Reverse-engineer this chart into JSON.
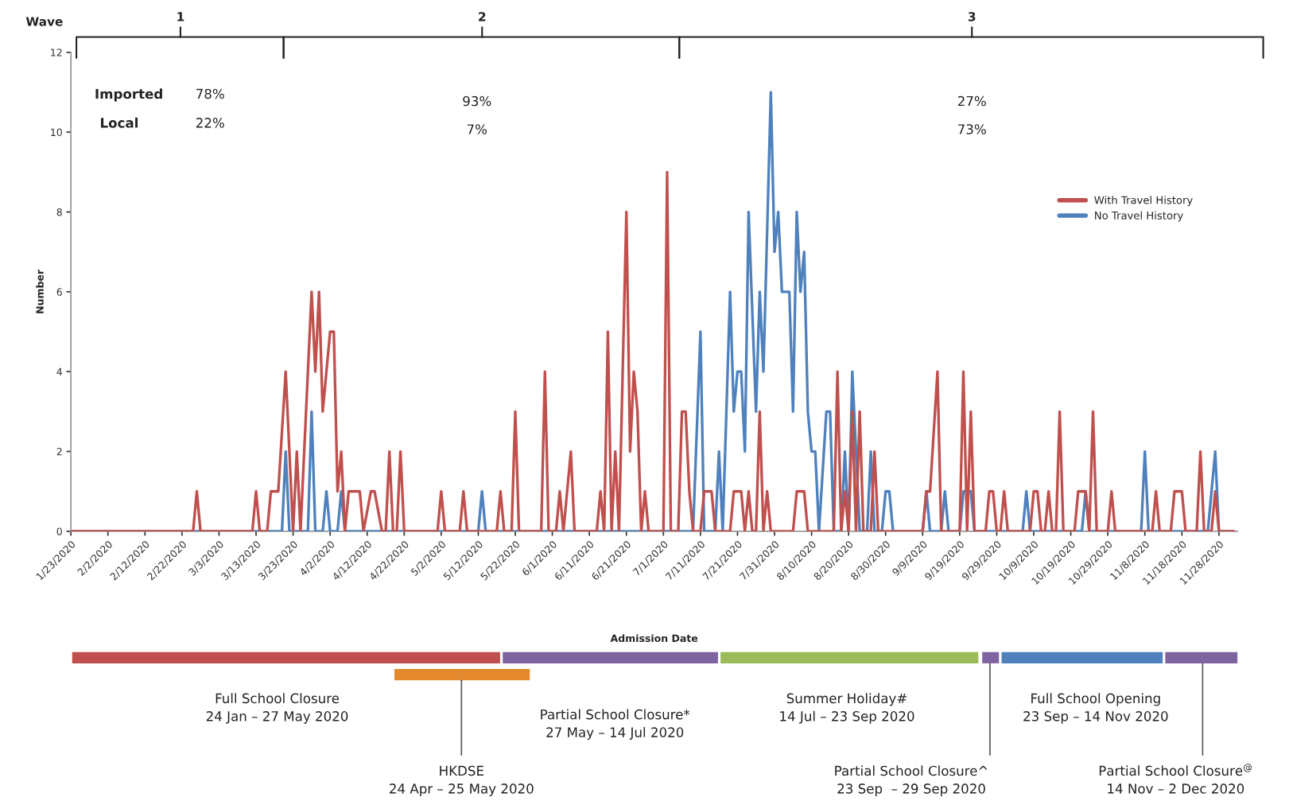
{
  "chart_data": {
    "type": "line",
    "xlabel": "Admission Date",
    "ylabel": "Number",
    "xlim": [
      "2020-01-23",
      "2020-12-03"
    ],
    "xticks": [
      {
        "value": "2020-01-23",
        "label": "1/23/2020"
      },
      {
        "value": "2020-02-02",
        "label": "2/2/2020"
      },
      {
        "value": "2020-02-12",
        "label": "2/12/2020"
      },
      {
        "value": "2020-02-22",
        "label": "2/22/2020"
      },
      {
        "value": "2020-03-03",
        "label": "3/3/2020"
      },
      {
        "value": "2020-03-13",
        "label": "3/13/2020"
      },
      {
        "value": "2020-03-23",
        "label": "3/23/2020"
      },
      {
        "value": "2020-04-02",
        "label": "4/2/2020"
      },
      {
        "value": "2020-04-12",
        "label": "4/12/2020"
      },
      {
        "value": "2020-04-22",
        "label": "4/22/2020"
      },
      {
        "value": "2020-05-02",
        "label": "5/2/2020"
      },
      {
        "value": "2020-05-12",
        "label": "5/12/2020"
      },
      {
        "value": "2020-05-22",
        "label": "5/22/2020"
      },
      {
        "value": "2020-06-01",
        "label": "6/1/2020"
      },
      {
        "value": "2020-06-11",
        "label": "6/11/2020"
      },
      {
        "value": "2020-06-21",
        "label": "6/21/2020"
      },
      {
        "value": "2020-07-01",
        "label": "7/1/2020"
      },
      {
        "value": "2020-07-11",
        "label": "7/11/2020"
      },
      {
        "value": "2020-07-21",
        "label": "7/21/2020"
      },
      {
        "value": "2020-07-31",
        "label": "7/31/2020"
      },
      {
        "value": "2020-08-10",
        "label": "8/10/2020"
      },
      {
        "value": "2020-08-20",
        "label": "8/20/2020"
      },
      {
        "value": "2020-08-30",
        "label": "8/30/2020"
      },
      {
        "value": "2020-09-09",
        "label": "9/9/2020"
      },
      {
        "value": "2020-09-19",
        "label": "9/19/2020"
      },
      {
        "value": "2020-09-29",
        "label": "9/29/2020"
      },
      {
        "value": "2020-10-09",
        "label": "10/9/2020"
      },
      {
        "value": "2020-10-19",
        "label": "10/19/2020"
      },
      {
        "value": "2020-10-29",
        "label": "10/29/2020"
      },
      {
        "value": "2020-11-08",
        "label": "11/8/2020"
      },
      {
        "value": "2020-11-18",
        "label": "11/18/2020"
      },
      {
        "value": "2020-11-28",
        "label": "11/28/2020"
      }
    ],
    "ylim": [
      0,
      12
    ],
    "yticks": [
      0,
      2,
      4,
      6,
      8,
      10,
      12
    ],
    "legend": "top right",
    "series": [
      {
        "name": "With Travel History",
        "color": "#c0504d",
        "x": [
          "2020-01-23",
          "2020-02-25",
          "2020-02-26",
          "2020-02-27",
          "2020-03-12",
          "2020-03-13",
          "2020-03-14",
          "2020-03-16",
          "2020-03-17",
          "2020-03-19",
          "2020-03-21",
          "2020-03-23",
          "2020-03-24",
          "2020-03-25",
          "2020-03-26",
          "2020-03-28",
          "2020-03-29",
          "2020-03-30",
          "2020-03-31",
          "2020-04-02",
          "2020-04-03",
          "2020-04-04",
          "2020-04-05",
          "2020-04-06",
          "2020-04-07",
          "2020-04-10",
          "2020-04-11",
          "2020-04-13",
          "2020-04-14",
          "2020-04-16",
          "2020-04-17",
          "2020-04-18",
          "2020-04-19",
          "2020-04-20",
          "2020-04-21",
          "2020-04-22",
          "2020-05-01",
          "2020-05-02",
          "2020-05-03",
          "2020-05-07",
          "2020-05-08",
          "2020-05-09",
          "2020-05-17",
          "2020-05-18",
          "2020-05-19",
          "2020-05-21",
          "2020-05-22",
          "2020-05-23",
          "2020-05-29",
          "2020-05-30",
          "2020-05-31",
          "2020-06-02",
          "2020-06-03",
          "2020-06-04",
          "2020-06-06",
          "2020-06-07",
          "2020-06-13",
          "2020-06-14",
          "2020-06-15",
          "2020-06-16",
          "2020-06-17",
          "2020-06-18",
          "2020-06-19",
          "2020-06-21",
          "2020-06-22",
          "2020-06-23",
          "2020-06-24",
          "2020-06-25",
          "2020-06-26",
          "2020-06-27",
          "2020-07-01",
          "2020-07-02",
          "2020-07-03",
          "2020-07-05",
          "2020-07-06",
          "2020-07-07",
          "2020-07-08",
          "2020-07-09",
          "2020-07-11",
          "2020-07-12",
          "2020-07-14",
          "2020-07-15",
          "2020-07-19",
          "2020-07-20",
          "2020-07-22",
          "2020-07-23",
          "2020-07-24",
          "2020-07-25",
          "2020-07-26",
          "2020-07-27",
          "2020-07-28",
          "2020-07-29",
          "2020-07-30",
          "2020-08-05",
          "2020-08-06",
          "2020-08-08",
          "2020-08-09",
          "2020-08-16",
          "2020-08-17",
          "2020-08-18",
          "2020-08-19",
          "2020-08-20",
          "2020-08-21",
          "2020-08-22",
          "2020-08-23",
          "2020-08-24",
          "2020-08-26",
          "2020-08-27",
          "2020-08-28",
          "2020-09-09",
          "2020-09-10",
          "2020-09-11",
          "2020-09-13",
          "2020-09-14",
          "2020-09-19",
          "2020-09-20",
          "2020-09-21",
          "2020-09-22",
          "2020-09-23",
          "2020-09-26",
          "2020-09-27",
          "2020-09-28",
          "2020-09-29",
          "2020-09-30",
          "2020-10-01",
          "2020-10-02",
          "2020-10-08",
          "2020-10-09",
          "2020-10-10",
          "2020-10-11",
          "2020-10-12",
          "2020-10-13",
          "2020-10-14",
          "2020-10-15",
          "2020-10-16",
          "2020-10-17",
          "2020-10-20",
          "2020-10-21",
          "2020-10-23",
          "2020-10-24",
          "2020-10-25",
          "2020-10-26",
          "2020-10-29",
          "2020-10-30",
          "2020-10-31",
          "2020-11-10",
          "2020-11-11",
          "2020-11-12",
          "2020-11-15",
          "2020-11-16",
          "2020-11-18",
          "2020-11-19",
          "2020-11-22",
          "2020-11-23",
          "2020-11-24",
          "2020-11-26",
          "2020-11-27",
          "2020-11-28",
          "2020-12-02"
        ],
        "values": [
          0,
          0,
          1,
          0,
          0,
          1,
          0,
          0,
          1,
          1,
          4,
          0,
          2,
          0,
          2,
          6,
          4,
          6,
          3,
          5,
          5,
          1,
          2,
          0,
          1,
          1,
          0,
          1,
          1,
          0,
          0,
          2,
          0,
          0,
          2,
          0,
          0,
          1,
          0,
          0,
          1,
          0,
          0,
          1,
          0,
          0,
          3,
          0,
          0,
          4,
          0,
          0,
          1,
          0,
          2,
          0,
          0,
          1,
          0,
          5,
          0,
          2,
          0,
          8,
          2,
          4,
          3,
          0,
          1,
          0,
          0,
          9,
          0,
          0,
          3,
          3,
          1,
          0,
          0,
          1,
          1,
          0,
          0,
          1,
          1,
          0,
          1,
          0,
          0,
          3,
          0,
          1,
          0,
          0,
          1,
          1,
          0,
          0,
          4,
          0,
          1,
          0,
          3,
          0,
          3,
          0,
          0,
          2,
          0,
          0,
          1,
          1,
          4,
          0,
          0,
          4,
          0,
          3,
          0,
          0,
          1,
          1,
          0,
          0,
          1,
          0,
          0,
          1,
          1,
          0,
          0,
          1,
          0,
          0,
          3,
          0,
          0,
          1,
          1,
          0,
          3,
          0,
          0,
          1,
          0,
          0,
          1,
          0,
          0,
          1,
          1,
          0,
          0,
          2,
          0,
          0,
          1,
          0,
          0
        ]
      },
      {
        "name": "No Travel History",
        "color": "#4f81bd",
        "x": [
          "2020-01-23",
          "2020-03-20",
          "2020-03-21",
          "2020-03-22",
          "2020-03-27",
          "2020-03-28",
          "2020-03-29",
          "2020-03-31",
          "2020-04-01",
          "2020-04-02",
          "2020-04-04",
          "2020-04-05",
          "2020-04-06",
          "2020-05-12",
          "2020-05-13",
          "2020-05-14",
          "2020-07-09",
          "2020-07-11",
          "2020-07-12",
          "2020-07-15",
          "2020-07-16",
          "2020-07-17",
          "2020-07-19",
          "2020-07-20",
          "2020-07-21",
          "2020-07-22",
          "2020-07-23",
          "2020-07-24",
          "2020-07-26",
          "2020-07-27",
          "2020-07-28",
          "2020-07-30",
          "2020-07-31",
          "2020-08-01",
          "2020-08-02",
          "2020-08-04",
          "2020-08-05",
          "2020-08-06",
          "2020-08-07",
          "2020-08-08",
          "2020-08-09",
          "2020-08-10",
          "2020-08-11",
          "2020-08-12",
          "2020-08-14",
          "2020-08-15",
          "2020-08-16",
          "2020-08-18",
          "2020-08-19",
          "2020-08-20",
          "2020-08-21",
          "2020-08-23",
          "2020-08-25",
          "2020-08-26",
          "2020-08-27",
          "2020-08-29",
          "2020-08-30",
          "2020-08-31",
          "2020-09-01",
          "2020-09-09",
          "2020-09-10",
          "2020-09-11",
          "2020-09-14",
          "2020-09-15",
          "2020-09-16",
          "2020-09-19",
          "2020-09-20",
          "2020-09-22",
          "2020-09-23",
          "2020-10-06",
          "2020-10-07",
          "2020-10-08",
          "2020-10-22",
          "2020-10-23",
          "2020-10-24",
          "2020-11-07",
          "2020-11-08",
          "2020-11-09",
          "2020-11-25",
          "2020-11-26",
          "2020-11-27",
          "2020-11-28",
          "2020-12-02"
        ],
        "values": [
          0,
          0,
          2,
          0,
          0,
          3,
          0,
          0,
          1,
          0,
          0,
          1,
          0,
          0,
          1,
          0,
          0,
          5,
          0,
          0,
          2,
          0,
          6,
          3,
          4,
          4,
          2,
          8,
          3,
          6,
          4,
          11,
          7,
          8,
          6,
          6,
          3,
          8,
          6,
          7,
          3,
          2,
          2,
          0,
          3,
          3,
          0,
          0,
          2,
          0,
          4,
          0,
          0,
          2,
          0,
          0,
          1,
          1,
          0,
          0,
          1,
          0,
          0,
          1,
          0,
          0,
          1,
          1,
          0,
          0,
          1,
          0,
          0,
          1,
          0,
          0,
          2,
          0,
          0,
          1,
          2,
          0,
          0
        ]
      }
    ],
    "annotations": [
      "Wave",
      "1",
      "2",
      "3",
      "Imported",
      "Local",
      "78%",
      "22%",
      "93%",
      "7%",
      "27%",
      "73%",
      "Full School Closure\n24 Jan – 27 May 2020",
      "HKDSE\n24 Apr – 25 May 2020",
      "Partial School Closure*\n27 May – 14 Jul 2020",
      "Summer Holiday#\n14 Jul – 23 Sep 2020",
      "Partial School Closure^\n23 Sep  – 29 Sep 2020",
      "Full School Opening\n23 Sep – 14 Nov 2020",
      "Partial School Closure$^{@}$\n14 Nov – 2 Dec 2020"
    ]
  }
}
